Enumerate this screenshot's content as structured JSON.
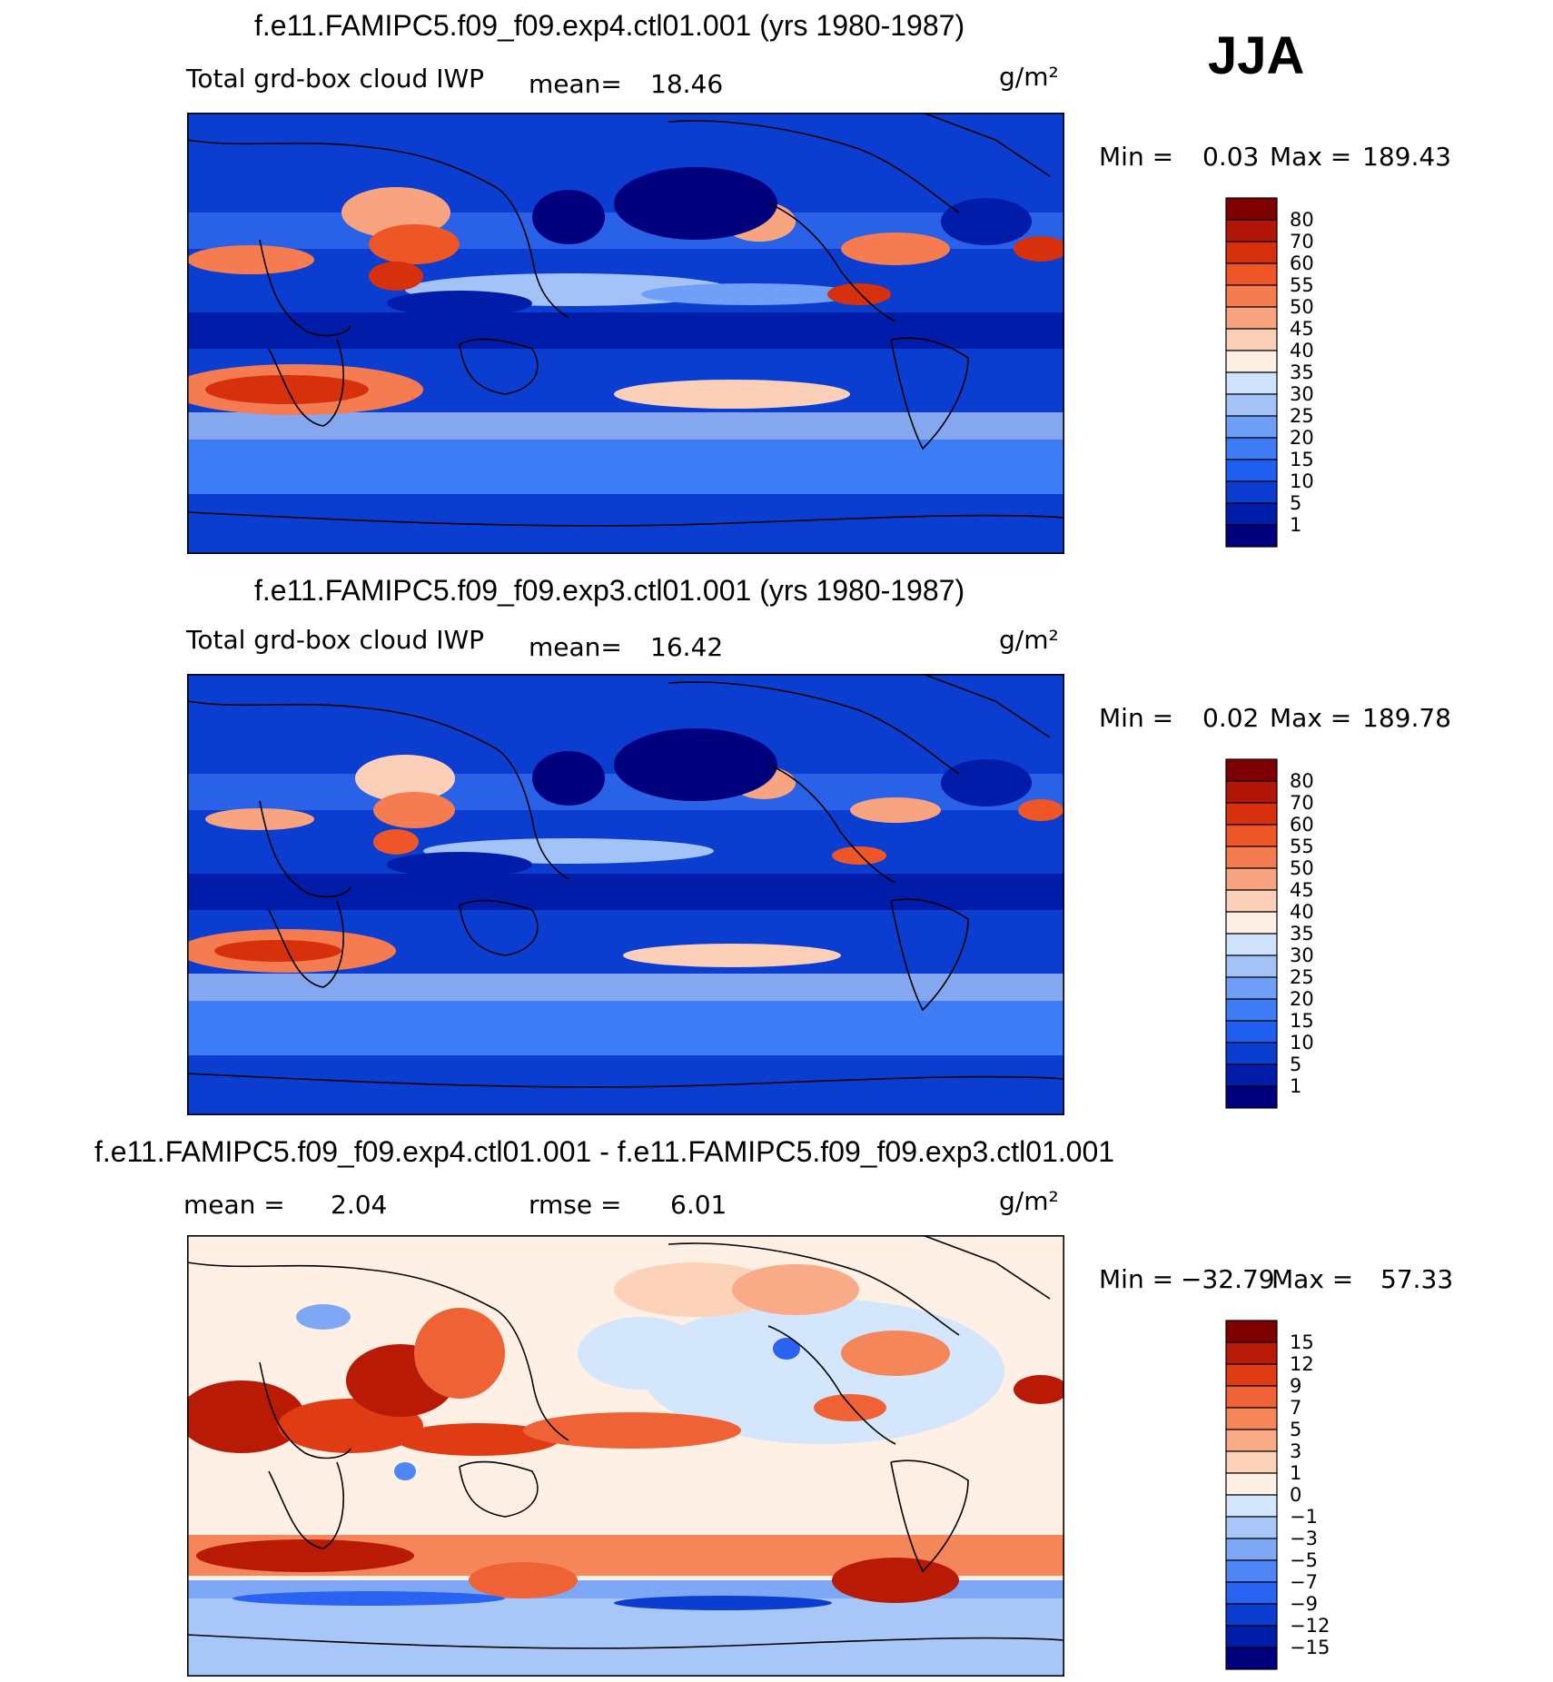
{
  "season": "JJA",
  "colors": {
    "base": [
      "#00007f",
      "#001ca8",
      "#0a3dd0",
      "#1e5ef0",
      "#3e7cf6",
      "#6f9ff6",
      "#a2c2f8",
      "#cfe2fb",
      "#fff0e6",
      "#fcd0b8",
      "#f9a480",
      "#f57b50",
      "#ee5628",
      "#d7300c",
      "#b11606",
      "#7f0000"
    ],
    "diff": [
      "#00007f",
      "#001ca8",
      "#0a3dd0",
      "#2a63f2",
      "#4f86f5",
      "#7ea8f6",
      "#a8c7f8",
      "#d4e6fc",
      "#fff0e6",
      "#fcd2b8",
      "#f9aa86",
      "#f5865a",
      "#ef6236",
      "#df3c14",
      "#b81a06",
      "#7f0000"
    ]
  },
  "chart_data": [
    {
      "type": "heatmap",
      "title": "f.e11.FAMIPC5.f09_f09.exp4.ctl01.001 (yrs 1980-1987)",
      "variable": "Total grd-box cloud IWP",
      "mean_label": "mean=",
      "mean": "18.46",
      "units": "g/m²",
      "min_label": "Min =",
      "min": "0.03",
      "max_label": "Max =",
      "max": "189.43",
      "levels": [
        "80",
        "70",
        "60",
        "55",
        "50",
        "45",
        "40",
        "35",
        "30",
        "25",
        "20",
        "15",
        "10",
        "5",
        "1"
      ]
    },
    {
      "type": "heatmap",
      "title": "f.e11.FAMIPC5.f09_f09.exp3.ctl01.001 (yrs 1980-1987)",
      "variable": "Total grd-box cloud IWP",
      "mean_label": "mean=",
      "mean": "16.42",
      "units": "g/m²",
      "min_label": "Min =",
      "min": "0.02",
      "max_label": "Max =",
      "max": "189.78",
      "levels": [
        "80",
        "70",
        "60",
        "55",
        "50",
        "45",
        "40",
        "35",
        "30",
        "25",
        "20",
        "15",
        "10",
        "5",
        "1"
      ]
    },
    {
      "type": "heatmap",
      "title": "f.e11.FAMIPC5.f09_f09.exp4.ctl01.001 - f.e11.FAMIPC5.f09_f09.exp3.ctl01.001",
      "mean_label": "mean =",
      "mean": "2.04",
      "rmse_label": "rmse =",
      "rmse": "6.01",
      "units": "g/m²",
      "min_label": "Min =",
      "min": "−32.79",
      "max_label": "Max =",
      "max": "57.33",
      "levels": [
        "15",
        "12",
        "9",
        "7",
        "5",
        "3",
        "1",
        "0",
        "−1",
        "−3",
        "−5",
        "−7",
        "−9",
        "−12",
        "−15"
      ]
    }
  ]
}
